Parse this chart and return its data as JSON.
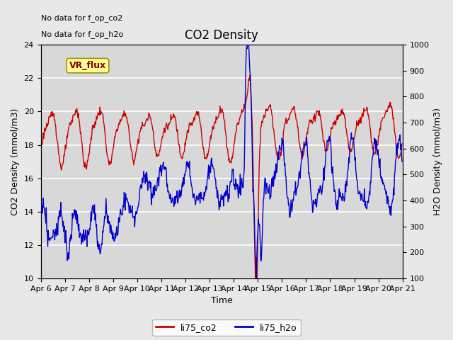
{
  "title": "CO2 Density",
  "xlabel": "Time",
  "ylabel_left": "CO2 Density (mmol/m3)",
  "ylabel_right": "H2O Density (mmol/m3)",
  "ylim_left": [
    10,
    24
  ],
  "ylim_right": [
    100,
    1000
  ],
  "yticks_left": [
    10,
    12,
    14,
    16,
    18,
    20,
    22,
    24
  ],
  "yticks_right": [
    100,
    200,
    300,
    400,
    500,
    600,
    700,
    800,
    900,
    1000
  ],
  "xtick_labels": [
    "Apr 6",
    "Apr 7",
    "Apr 8",
    "Apr 9",
    "Apr 10",
    "Apr 11",
    "Apr 12",
    "Apr 13",
    "Apr 14",
    "Apr 15",
    "Apr 16",
    "Apr 17",
    "Apr 18",
    "Apr 19",
    "Apr 20",
    "Apr 21"
  ],
  "color_co2": "#cc0000",
  "color_h2o": "#0000cc",
  "legend_co2": "li75_co2",
  "legend_h2o": "li75_h2o",
  "text_no_data": [
    "No data for f_op_co2",
    "No data for f_op_h2o"
  ],
  "vr_flux_label": "VR_flux",
  "vr_flux_color": "#ffff99",
  "vr_flux_text_color": "#880000",
  "background_color": "#e8e8e8",
  "plot_bg_color": "#d8d8d8",
  "grid_color": "#ffffff",
  "title_fontsize": 12,
  "label_fontsize": 9,
  "tick_fontsize": 8,
  "legend_fontsize": 9,
  "line_width": 1.0
}
